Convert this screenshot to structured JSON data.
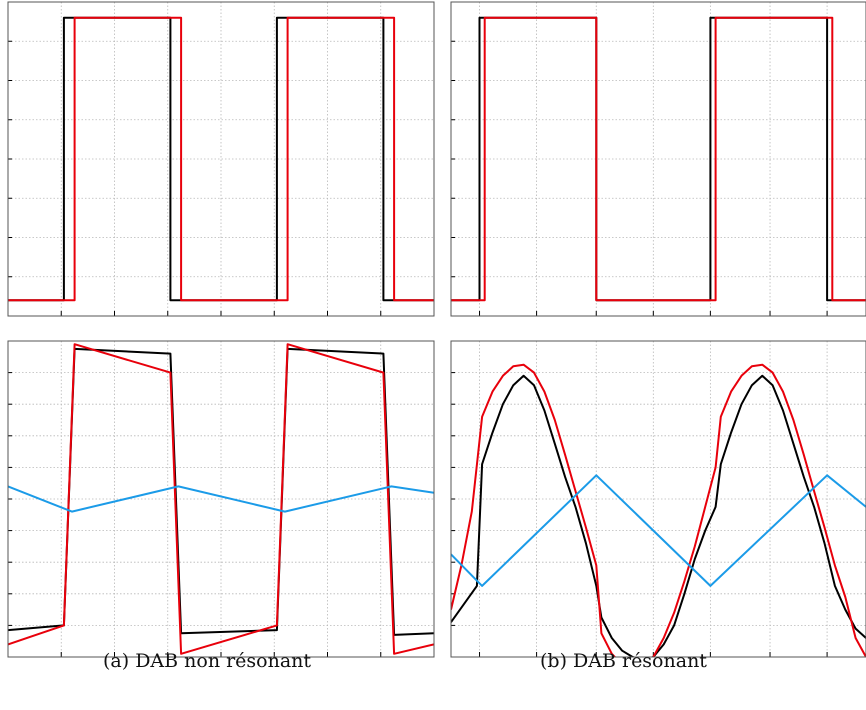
{
  "figure": {
    "caption_a": "(a) DAB non résonant",
    "caption_b": "(b) DAB résonant"
  },
  "colors": {
    "black": "#000000",
    "red": "#e8000b",
    "blue": "#1b9be8",
    "grid": "#b8b8b8"
  },
  "chart_data": [
    {
      "panel": "a-top",
      "type": "line",
      "xlim": [
        0,
        8
      ],
      "ylim": [
        0,
        1
      ],
      "grid": true,
      "legend": "none",
      "xticks": [
        1,
        2,
        3,
        4,
        5,
        6,
        7
      ],
      "yticks": [
        0.125,
        0.25,
        0.375,
        0.5,
        0.625,
        0.75,
        0.875
      ],
      "series": [
        {
          "color": "black",
          "x": [
            0,
            1.05,
            1.05,
            3.05,
            3.05,
            5.05,
            5.05,
            7.05,
            7.05,
            8
          ],
          "y": [
            0.05,
            0.05,
            0.95,
            0.95,
            0.05,
            0.05,
            0.95,
            0.95,
            0.05,
            0.05
          ]
        },
        {
          "color": "red",
          "x": [
            0,
            1.25,
            1.25,
            3.25,
            3.25,
            5.25,
            5.25,
            7.25,
            7.25,
            8
          ],
          "y": [
            0.05,
            0.05,
            0.95,
            0.95,
            0.05,
            0.05,
            0.95,
            0.95,
            0.05,
            0.05
          ]
        }
      ]
    },
    {
      "panel": "b-top",
      "type": "line",
      "xlim": [
        0,
        8
      ],
      "ylim": [
        0,
        1
      ],
      "grid": true,
      "legend": "none",
      "xticks": [
        0.55,
        1.65,
        2.8,
        3.9,
        5.0,
        6.15,
        7.25
      ],
      "yticks": [
        0.125,
        0.25,
        0.375,
        0.5,
        0.625,
        0.75,
        0.875
      ],
      "series": [
        {
          "color": "black",
          "x": [
            0,
            0.55,
            0.55,
            2.8,
            2.8,
            5.0,
            5.0,
            7.25,
            7.25,
            8
          ],
          "y": [
            0.05,
            0.05,
            0.95,
            0.95,
            0.05,
            0.05,
            0.95,
            0.95,
            0.05,
            0.05
          ]
        },
        {
          "color": "red",
          "x": [
            0,
            0.65,
            0.65,
            2.8,
            2.8,
            5.1,
            5.1,
            7.35,
            7.35,
            8
          ],
          "y": [
            0.05,
            0.05,
            0.95,
            0.95,
            0.05,
            0.05,
            0.95,
            0.95,
            0.05,
            0.05
          ]
        }
      ]
    },
    {
      "panel": "a-bottom",
      "type": "line",
      "xlim": [
        0,
        8
      ],
      "ylim": [
        -1,
        1
      ],
      "grid": true,
      "legend": "none",
      "xticks": [
        1,
        2,
        3,
        4,
        5,
        6,
        7
      ],
      "yticks": [
        -0.8,
        -0.6,
        -0.4,
        -0.2,
        0,
        0.2,
        0.4,
        0.6,
        0.8
      ],
      "series": [
        {
          "color": "black",
          "x": [
            0,
            1.05,
            1.25,
            3.05,
            3.25,
            5.05,
            5.25,
            7.05,
            7.25,
            8
          ],
          "y": [
            -0.83,
            -0.8,
            0.95,
            0.92,
            -0.85,
            -0.83,
            0.95,
            0.92,
            -0.86,
            -0.85
          ]
        },
        {
          "color": "red",
          "x": [
            0,
            1.05,
            1.25,
            3.05,
            3.25,
            5.05,
            5.25,
            7.05,
            7.25,
            8
          ],
          "y": [
            -0.92,
            -0.8,
            0.98,
            0.8,
            -0.98,
            -0.8,
            0.98,
            0.8,
            -0.98,
            -0.92
          ]
        },
        {
          "color": "blue",
          "x": [
            0,
            1.2,
            3.2,
            5.2,
            7.2,
            8
          ],
          "y": [
            0.08,
            -0.08,
            0.08,
            -0.08,
            0.08,
            0.04
          ]
        }
      ]
    },
    {
      "panel": "b-bottom",
      "type": "line",
      "xlim": [
        0,
        8
      ],
      "ylim": [
        -1,
        1
      ],
      "grid": true,
      "legend": "none",
      "xticks": [
        0.55,
        1.65,
        2.8,
        3.9,
        5.0,
        6.15,
        7.25
      ],
      "yticks": [
        -0.8,
        -0.6,
        -0.4,
        -0.2,
        0,
        0.2,
        0.4,
        0.6,
        0.8
      ],
      "series": [
        {
          "color": "black",
          "x": [
            0,
            0.5,
            0.6,
            0.8,
            1.0,
            1.2,
            1.4,
            1.6,
            1.8,
            2.0,
            2.2,
            2.4,
            2.6,
            2.8,
            2.9,
            3.1,
            3.3,
            3.5,
            3.7,
            3.9,
            4.1,
            4.3,
            4.5,
            4.7,
            4.9,
            5.1,
            5.2,
            5.4,
            5.6,
            5.8,
            6.0,
            6.2,
            6.4,
            6.6,
            6.8,
            7.0,
            7.2,
            7.4,
            7.6,
            7.8,
            8.0
          ],
          "y": [
            -0.78,
            -0.55,
            0.22,
            0.42,
            0.6,
            0.72,
            0.78,
            0.72,
            0.56,
            0.35,
            0.14,
            -0.05,
            -0.28,
            -0.55,
            -0.75,
            -0.88,
            -0.96,
            -1.0,
            -1.02,
            -1.0,
            -0.92,
            -0.8,
            -0.6,
            -0.38,
            -0.2,
            -0.05,
            0.22,
            0.42,
            0.6,
            0.72,
            0.78,
            0.72,
            0.56,
            0.35,
            0.14,
            -0.05,
            -0.28,
            -0.55,
            -0.7,
            -0.82,
            -0.88
          ]
        },
        {
          "color": "red",
          "x": [
            0,
            0.2,
            0.4,
            0.6,
            0.8,
            1.0,
            1.2,
            1.4,
            1.6,
            1.8,
            2.0,
            2.2,
            2.4,
            2.6,
            2.8,
            2.9,
            3.1,
            3.3,
            3.5,
            3.7,
            3.9,
            4.1,
            4.3,
            4.5,
            4.7,
            4.9,
            5.1,
            5.2,
            5.4,
            5.6,
            5.8,
            6.0,
            6.2,
            6.4,
            6.6,
            6.8,
            7.0,
            7.2,
            7.4,
            7.6,
            7.8,
            8.0
          ],
          "y": [
            -0.7,
            -0.42,
            -0.08,
            0.52,
            0.68,
            0.78,
            0.84,
            0.85,
            0.8,
            0.68,
            0.5,
            0.28,
            0.05,
            -0.18,
            -0.42,
            -0.85,
            -0.98,
            -1.05,
            -1.08,
            -1.06,
            -1.0,
            -0.88,
            -0.72,
            -0.52,
            -0.3,
            -0.05,
            0.2,
            0.52,
            0.68,
            0.78,
            0.84,
            0.85,
            0.8,
            0.68,
            0.5,
            0.28,
            0.05,
            -0.18,
            -0.42,
            -0.62,
            -0.88,
            -1.0
          ]
        },
        {
          "color": "blue",
          "x": [
            0,
            0.6,
            2.8,
            5.0,
            7.25,
            8
          ],
          "y": [
            -0.35,
            -0.55,
            0.15,
            -0.55,
            0.15,
            -0.05
          ]
        }
      ]
    }
  ]
}
